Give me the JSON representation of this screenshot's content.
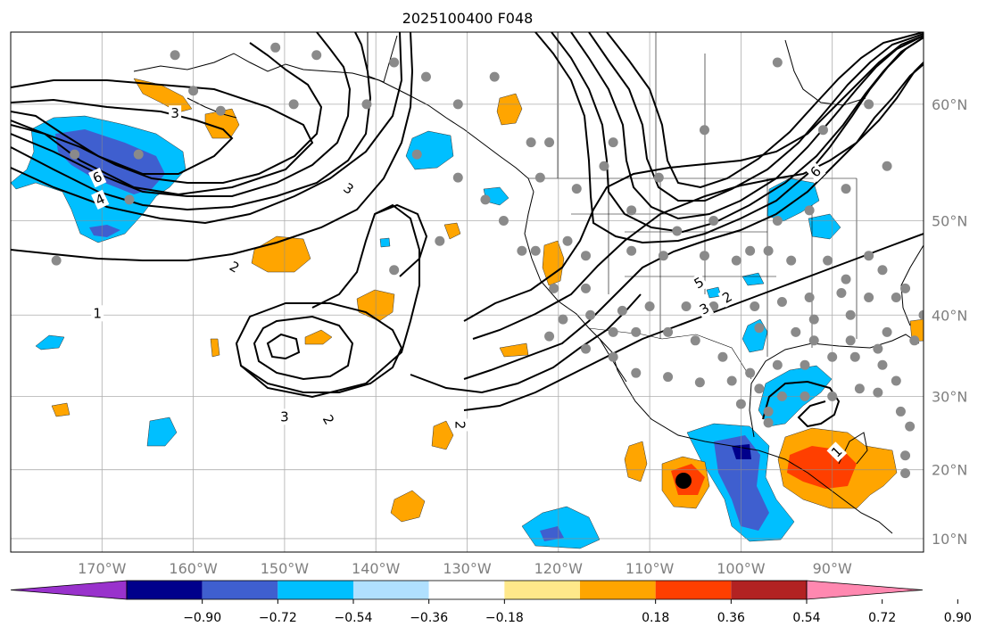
{
  "title": "2025100400 F048",
  "map": {
    "lon_range": [
      -180,
      -80
    ],
    "lat_range": [
      8,
      65
    ],
    "lon_ticks": [
      {
        "value": -170,
        "label": "170°W"
      },
      {
        "value": -160,
        "label": "160°W"
      },
      {
        "value": -150,
        "label": "150°W"
      },
      {
        "value": -140,
        "label": "140°W"
      },
      {
        "value": -130,
        "label": "130°W"
      },
      {
        "value": -120,
        "label": "120°W"
      },
      {
        "value": -110,
        "label": "110°W"
      },
      {
        "value": -100,
        "label": "100°W"
      },
      {
        "value": -90,
        "label": "90°W"
      }
    ],
    "lat_ticks": [
      {
        "value": 60,
        "label": "60°N"
      },
      {
        "value": 50,
        "label": "50°N"
      },
      {
        "value": 40,
        "label": "40°N"
      },
      {
        "value": 30,
        "label": "30°N"
      },
      {
        "value": 20,
        "label": "20°N"
      },
      {
        "value": 10,
        "label": "10°N"
      }
    ],
    "gridlines": true
  },
  "colorbar": {
    "labels": [
      "−0.90",
      "−0.72",
      "−0.54",
      "−0.36",
      "−0.18",
      "0.18",
      "0.36",
      "0.54",
      "0.72",
      "0.90"
    ],
    "colors": [
      "#9932cc",
      "#00008b",
      "#3f5fcf",
      "#00bfff",
      "#b0e0ff",
      "#ffffff",
      "#ffe88a",
      "#ffa500",
      "#ff3f00",
      "#b22222",
      "#ff88b0"
    ],
    "extend": "both"
  },
  "contour_labels": [
    {
      "text": "6",
      "lon": -170.5,
      "lat": 54.0,
      "rot": -25
    },
    {
      "text": "4",
      "lon": -170.2,
      "lat": 52.0,
      "rot": -25
    },
    {
      "text": "3",
      "lon": -162.0,
      "lat": 59.3,
      "rot": 0
    },
    {
      "text": "3",
      "lon": -143.0,
      "lat": 53.0,
      "rot": 35
    },
    {
      "text": "2",
      "lon": -155.5,
      "lat": 45.3,
      "rot": 30
    },
    {
      "text": "1",
      "lon": -170.5,
      "lat": 40.2,
      "rot": 0
    },
    {
      "text": "3",
      "lon": -150.0,
      "lat": 27.3,
      "rot": 0
    },
    {
      "text": "2",
      "lon": -145.2,
      "lat": 26.9,
      "rot": 60
    },
    {
      "text": "2",
      "lon": -130.8,
      "lat": 26.2,
      "rot": 90
    },
    {
      "text": "5",
      "lon": -104.6,
      "lat": 43.6,
      "rot": -30
    },
    {
      "text": "3",
      "lon": -104.0,
      "lat": 40.7,
      "rot": -30
    },
    {
      "text": "2",
      "lon": -101.5,
      "lat": 42.0,
      "rot": -30
    },
    {
      "text": "6",
      "lon": -91.8,
      "lat": 54.5,
      "rot": -45
    },
    {
      "text": "1",
      "lon": -89.5,
      "lat": 22.5,
      "rot": -45
    }
  ],
  "icons": {
    "stations": "station-marker-icon",
    "storm": "storm-center-icon"
  }
}
